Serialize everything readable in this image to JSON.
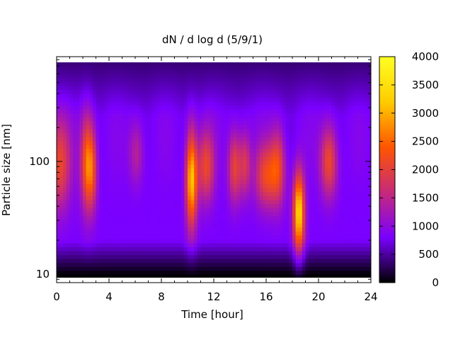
{
  "chart_data": {
    "type": "heatmap",
    "title": "dN / d log d (5/9/1)",
    "xlabel": "Time [hour]",
    "ylabel": "Particle size [nm]",
    "x_range": [
      0,
      24
    ],
    "x_ticks": [
      0,
      4,
      8,
      12,
      16,
      20,
      24
    ],
    "y_scale": "log",
    "y_range": [
      8.4,
      850
    ],
    "y_tick_labels": [
      {
        "value": 10,
        "label": "10"
      },
      {
        "value": 100,
        "label": "100"
      }
    ],
    "colorbar": {
      "range": [
        0,
        4000
      ],
      "ticks": [
        0,
        500,
        1000,
        1500,
        2000,
        2500,
        3000,
        3500,
        4000
      ],
      "colors": [
        "#000000",
        "#7a00ff",
        "#c62a7a",
        "#ff5500",
        "#ffcc00",
        "#ffff22"
      ]
    },
    "background_level": 800,
    "events": [
      {
        "time": 0.2,
        "size": 95,
        "peak": 2100,
        "width_h": 0.6,
        "spread": 0.28
      },
      {
        "time": 2.3,
        "size": 100,
        "peak": 2300,
        "width_h": 0.35,
        "spread": 0.3
      },
      {
        "time": 2.7,
        "size": 85,
        "peak": 1900,
        "width_h": 0.3,
        "spread": 0.25
      },
      {
        "time": 6.1,
        "size": 120,
        "peak": 1500,
        "width_h": 0.4,
        "spread": 0.2
      },
      {
        "time": 10.3,
        "size": 70,
        "peak": 3200,
        "width_h": 0.3,
        "spread": 0.3
      },
      {
        "time": 11.4,
        "size": 90,
        "peak": 2100,
        "width_h": 0.45,
        "spread": 0.22
      },
      {
        "time": 13.6,
        "size": 90,
        "peak": 2100,
        "width_h": 0.35,
        "spread": 0.22
      },
      {
        "time": 14.4,
        "size": 95,
        "peak": 1800,
        "width_h": 0.3,
        "spread": 0.2
      },
      {
        "time": 16.0,
        "size": 75,
        "peak": 2100,
        "width_h": 0.6,
        "spread": 0.2
      },
      {
        "time": 16.9,
        "size": 90,
        "peak": 2000,
        "width_h": 0.4,
        "spread": 0.24
      },
      {
        "time": 18.5,
        "size": 35,
        "peak": 3400,
        "width_h": 0.3,
        "spread": 0.25
      },
      {
        "time": 20.8,
        "size": 100,
        "peak": 2200,
        "width_h": 0.45,
        "spread": 0.22
      }
    ]
  }
}
